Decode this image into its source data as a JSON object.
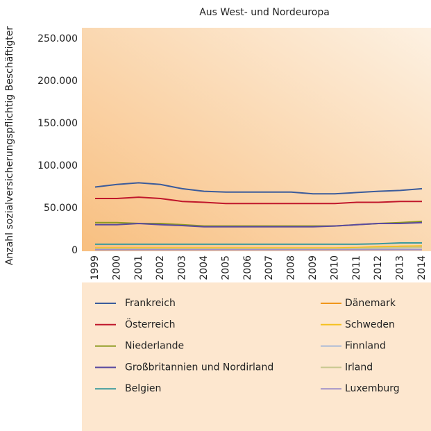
{
  "chart_data": {
    "type": "line",
    "title": "Aus West- und Nordeuropa",
    "y_label": "Anzahl sozialversicherungspflichtig Beschäftigter",
    "categories": [
      "1999",
      "2000",
      "2001",
      "2002",
      "2003",
      "2004",
      "2005",
      "2006",
      "2007",
      "2008",
      "2009",
      "2010",
      "2011",
      "2012",
      "2013",
      "2014"
    ],
    "ylim": [
      0,
      250000
    ],
    "yticks": [
      0,
      {
        "value": 50000,
        "label": "50.000"
      },
      {
        "value": 100000,
        "label": "100.000"
      },
      {
        "value": 150000,
        "label": "150.000"
      },
      {
        "value": 200000,
        "label": "200.000"
      },
      {
        "value": 250000,
        "label": "250.000"
      }
    ],
    "series": [
      {
        "name": "Frankreich",
        "color": "#3b5b9b",
        "values": [
          75000,
          78000,
          80000,
          78000,
          73000,
          70000,
          69000,
          69000,
          69000,
          69000,
          67000,
          67000,
          68500,
          70000,
          71000,
          73000
        ]
      },
      {
        "name": "Österreich",
        "color": "#c0172b",
        "values": [
          61500,
          61500,
          63000,
          61500,
          58000,
          57000,
          55500,
          55500,
          55500,
          55500,
          55500,
          55500,
          57000,
          57000,
          58000,
          58000
        ]
      },
      {
        "name": "Niederlande",
        "color": "#8c9a1f",
        "values": [
          33000,
          33000,
          32000,
          32000,
          30500,
          29000,
          29000,
          29000,
          29000,
          29000,
          29000,
          29000,
          30500,
          32000,
          33000,
          34500
        ]
      },
      {
        "name": "Großbritannien und Nordirland",
        "color": "#5a4aa0",
        "values": [
          30500,
          30500,
          32000,
          30500,
          29500,
          28000,
          28000,
          28000,
          28000,
          28000,
          28000,
          29000,
          30500,
          32000,
          32000,
          33000
        ]
      },
      {
        "name": "Belgien",
        "color": "#3a9a9c",
        "values": [
          7500,
          7500,
          7500,
          7500,
          7500,
          7500,
          7500,
          7500,
          7500,
          7500,
          7500,
          7500,
          7500,
          8000,
          9000,
          9000
        ]
      },
      {
        "name": "Dänemark",
        "color": "#f0961a",
        "values": [
          2500,
          2500,
          2500,
          2500,
          2500,
          2500,
          2500,
          2500,
          2500,
          2500,
          2500,
          2500,
          3000,
          4000,
          5000,
          5000
        ]
      },
      {
        "name": "Schweden",
        "color": "#f5c020",
        "values": [
          3000,
          3000,
          3000,
          3000,
          3000,
          3000,
          3000,
          3000,
          3000,
          3000,
          3000,
          3000,
          3500,
          4500,
          5000,
          5500
        ]
      },
      {
        "name": "Finnland",
        "color": "#a8b8d8",
        "values": [
          1500,
          1500,
          1500,
          1500,
          1500,
          1500,
          1500,
          1500,
          1500,
          1500,
          1500,
          1500,
          1500,
          1500,
          1500,
          1500
        ]
      },
      {
        "name": "Irland",
        "color": "#c8c890",
        "values": [
          2000,
          2000,
          2000,
          2000,
          2000,
          2000,
          2000,
          2000,
          2000,
          2000,
          2000,
          2000,
          2500,
          3000,
          3500,
          4000
        ]
      },
      {
        "name": "Luxemburg",
        "color": "#a090c8",
        "values": [
          1000,
          1000,
          1000,
          1000,
          1000,
          1000,
          1000,
          1000,
          1000,
          1000,
          1000,
          1000,
          1000,
          1000,
          1000,
          1000
        ]
      }
    ]
  }
}
